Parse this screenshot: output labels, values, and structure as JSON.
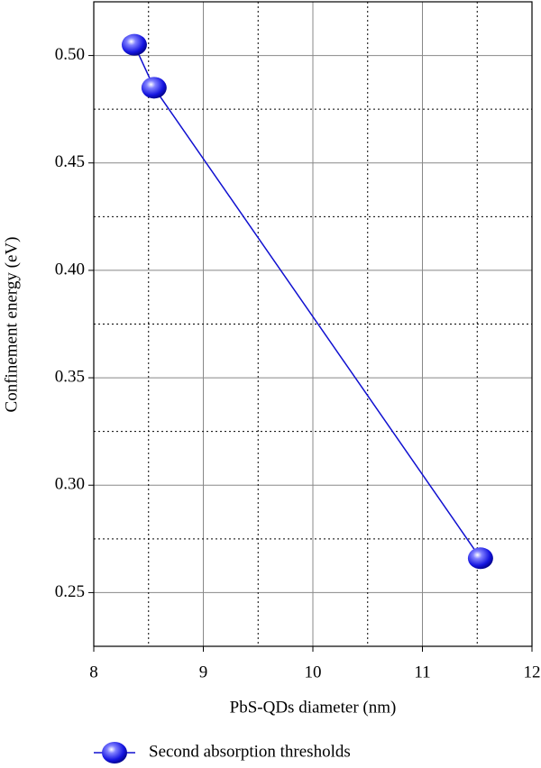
{
  "chart_data": {
    "type": "line",
    "xlabel": "PbS-QDs diameter (nm)",
    "ylabel": "Confinement energy (eV)",
    "series": [
      {
        "name": "Second absorption thresholds",
        "color": "#1010d0",
        "x": [
          8.37,
          8.55,
          11.53
        ],
        "values": [
          0.505,
          0.485,
          0.266
        ]
      }
    ],
    "xlim": [
      8,
      12
    ],
    "ylim": [
      0.225,
      0.525
    ],
    "xticks": [
      8,
      9,
      10,
      11,
      12
    ],
    "yticks": [
      0.25,
      {
        "value": 0.3,
        "label": "0.30"
      },
      0.35,
      {
        "value": 0.4,
        "label": "0.40"
      },
      0.45,
      {
        "value": 0.5,
        "label": "0.50"
      }
    ],
    "xminorticks": [
      8.5,
      9.5,
      10.5,
      11.5
    ],
    "yminorticks": [
      0.275,
      0.325,
      0.375,
      0.425,
      0.475
    ],
    "grid": true,
    "legend": "bottom"
  }
}
